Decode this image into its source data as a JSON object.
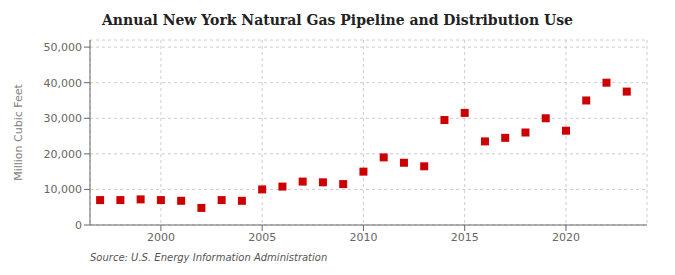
{
  "chart_data": {
    "type": "scatter",
    "title": "Annual New York Natural Gas Pipeline and Distribution Use",
    "y_label": "Million Cubic Feet",
    "annotations": [
      "Source: U.S. Energy Information Administration"
    ],
    "x": [
      1997,
      1998,
      1999,
      2000,
      2001,
      2002,
      2003,
      2004,
      2005,
      2006,
      2007,
      2008,
      2009,
      2010,
      2011,
      2012,
      2013,
      2014,
      2015,
      2016,
      2017,
      2018,
      2019,
      2020,
      2021,
      2022,
      2023
    ],
    "values": [
      7000,
      7000,
      7200,
      7000,
      6800,
      4800,
      7000,
      6800,
      10000,
      10800,
      12200,
      12000,
      11500,
      15000,
      19000,
      17500,
      16500,
      29500,
      31500,
      23500,
      24500,
      26000,
      30000,
      26500,
      35000,
      40000,
      37500
    ],
    "color": "#cc0000",
    "marker": "square",
    "xlim": [
      1996.5,
      2024
    ],
    "ylim": [
      0,
      52000
    ],
    "xticks": [
      2000,
      2005,
      2010,
      2015,
      2020
    ],
    "yticks": [
      0,
      {
        "value": 10000,
        "label": "10,000"
      },
      {
        "value": 20000,
        "label": "20,000"
      },
      {
        "value": 30000,
        "label": "30,000"
      },
      {
        "value": 40000,
        "label": "40,000"
      },
      {
        "value": 50000,
        "label": "50,000"
      }
    ],
    "grid": true
  }
}
